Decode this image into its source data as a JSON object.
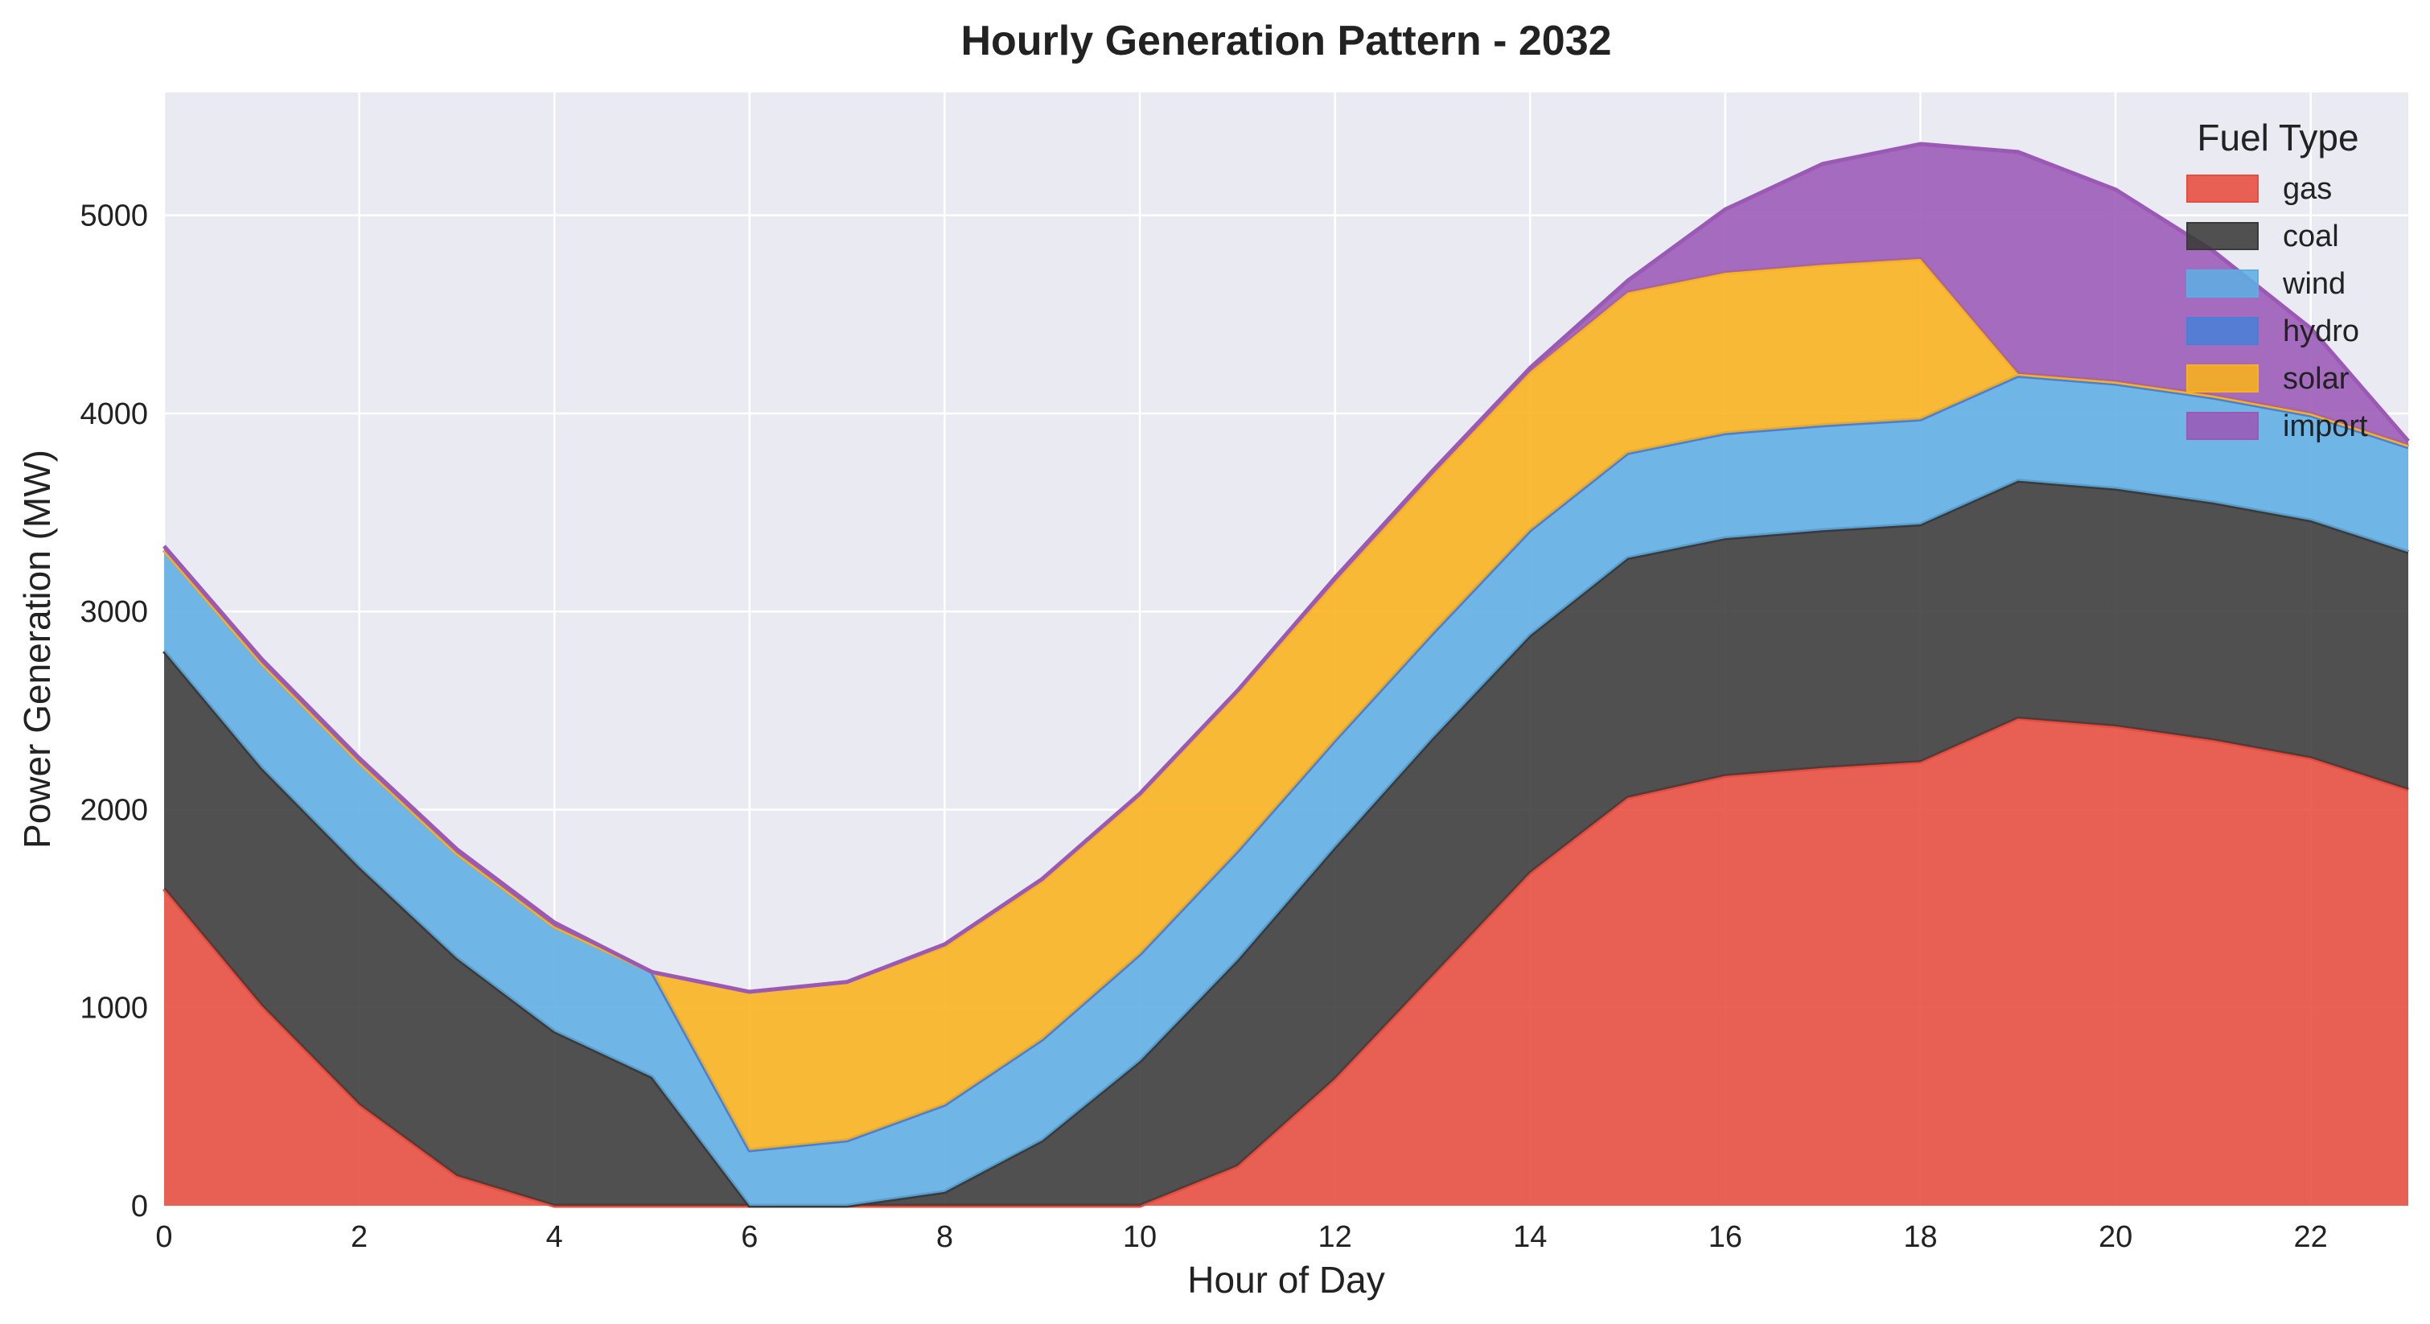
{
  "chart_data": {
    "type": "area",
    "stacked": true,
    "title": "Hourly Generation Pattern - 2032",
    "xlabel": "Hour of Day",
    "ylabel": "Power Generation (MW)",
    "xlim": [
      0,
      23
    ],
    "ylim": [
      0,
      5620
    ],
    "xticks": [
      0,
      2,
      4,
      6,
      8,
      10,
      12,
      14,
      16,
      18,
      20,
      22
    ],
    "yticks": [
      0,
      1000,
      2000,
      3000,
      4000,
      5000
    ],
    "grid": true,
    "legend": {
      "title": "Fuel Type",
      "position": "top-right"
    },
    "x": [
      0,
      1,
      2,
      3,
      4,
      5,
      6,
      7,
      8,
      9,
      10,
      11,
      12,
      13,
      14,
      15,
      16,
      17,
      18,
      19,
      20,
      21,
      22,
      23
    ],
    "series": [
      {
        "name": "gas",
        "color": "#e74c3c",
        "values": [
          1600,
          1010,
          510,
          150,
          0,
          0,
          0,
          0,
          0,
          0,
          0,
          200,
          640,
          1160,
          1680,
          2060,
          2170,
          2210,
          2240,
          2460,
          2420,
          2350,
          2260,
          2100
        ]
      },
      {
        "name": "coal",
        "color": "#3a3a3a",
        "values": [
          1200,
          1200,
          1200,
          1100,
          880,
          650,
          0,
          0,
          70,
          330,
          730,
          1040,
          1170,
          1200,
          1200,
          1210,
          1200,
          1200,
          1200,
          1200,
          1200,
          1200,
          1200,
          1200
        ]
      },
      {
        "name": "wind",
        "color": "#5dade2",
        "values": [
          510,
          530,
          530,
          530,
          530,
          530,
          280,
          330,
          440,
          510,
          540,
          550,
          540,
          530,
          530,
          530,
          530,
          530,
          530,
          530,
          530,
          530,
          530,
          530
        ]
      },
      {
        "name": "hydro",
        "color": "#4a7fd6",
        "values": [
          0,
          0,
          0,
          0,
          0,
          0,
          0,
          0,
          0,
          0,
          0,
          0,
          0,
          0,
          0,
          0,
          0,
          0,
          0,
          0,
          0,
          0,
          0,
          0
        ]
      },
      {
        "name": "solar",
        "color": "#f9b21b",
        "values": [
          0,
          0,
          0,
          0,
          0,
          0,
          800,
          800,
          800,
          800,
          800,
          800,
          800,
          800,
          800,
          810,
          810,
          810,
          810,
          10,
          10,
          10,
          10,
          10
        ]
      },
      {
        "name": "import",
        "color": "#9b59b6",
        "values": [
          20,
          20,
          20,
          20,
          20,
          0,
          0,
          0,
          10,
          10,
          10,
          10,
          20,
          20,
          20,
          60,
          320,
          510,
          580,
          1120,
          970,
          730,
          430,
          20
        ]
      }
    ]
  }
}
